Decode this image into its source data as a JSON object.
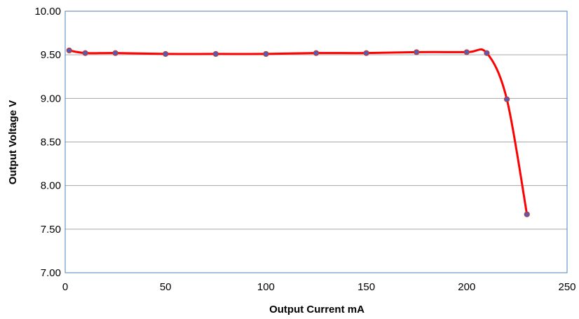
{
  "chart_data": {
    "type": "line",
    "title": "",
    "xlabel": "Output Current mA",
    "ylabel": "Output Voltage V",
    "xlim": [
      0,
      250
    ],
    "ylim": [
      7.0,
      10.0
    ],
    "x_ticks": [
      "0",
      "50",
      "100",
      "150",
      "200",
      "250"
    ],
    "y_ticks": [
      "7.00",
      "7.50",
      "8.00",
      "8.50",
      "9.00",
      "9.50",
      "10.00"
    ],
    "grid": "horizontal",
    "legend": "none",
    "line_style": "smoothed",
    "colors": {
      "line": "#ff0000",
      "marker_fill": "#5a5ab4",
      "marker_edge": "#c0392b",
      "grid": "#a6a6a6",
      "border": "#4f81bd"
    },
    "series": [
      {
        "x": [
          2,
          10,
          25,
          50,
          75,
          100,
          125,
          150,
          175,
          200,
          210,
          220,
          230
        ],
        "y": [
          9.55,
          9.52,
          9.52,
          9.51,
          9.51,
          9.51,
          9.52,
          9.52,
          9.53,
          9.53,
          9.52,
          8.99,
          7.67
        ]
      }
    ]
  }
}
